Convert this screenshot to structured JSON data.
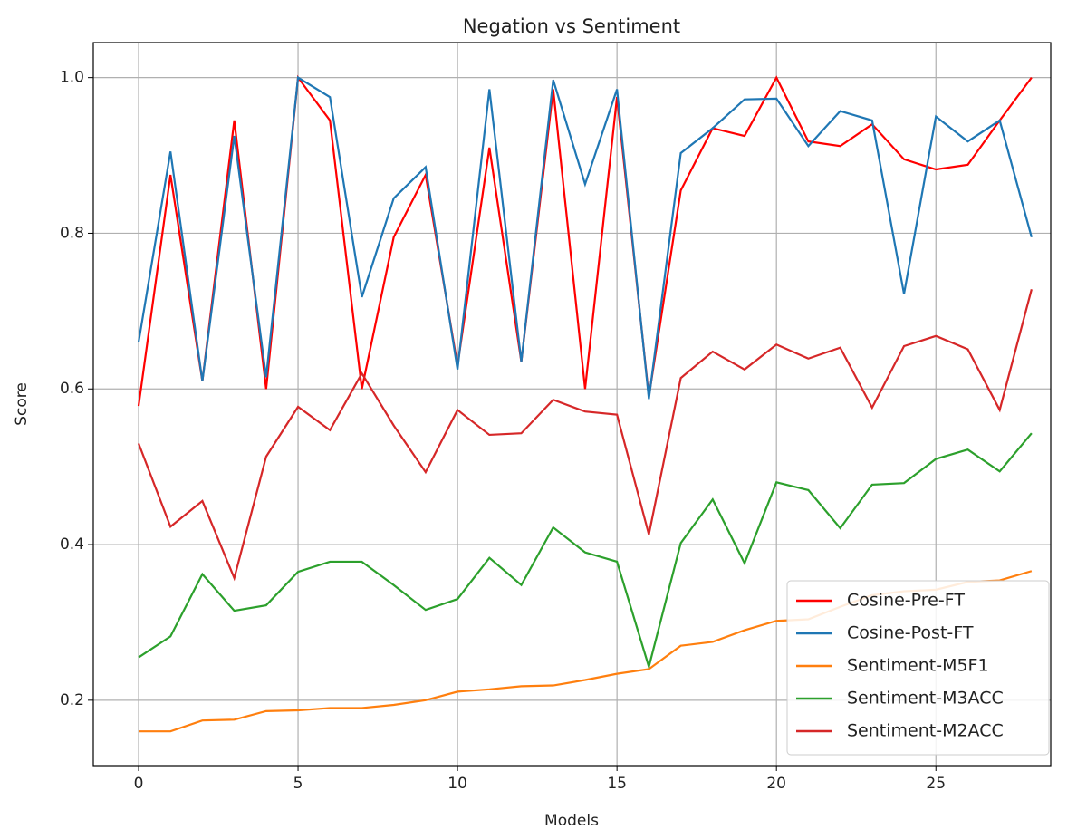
{
  "chart_data": {
    "type": "line",
    "title": "Negation vs Sentiment",
    "x_label": "Models",
    "y_label": "Score",
    "x": [
      0,
      1,
      2,
      3,
      4,
      5,
      6,
      7,
      8,
      9,
      10,
      11,
      12,
      13,
      14,
      15,
      16,
      17,
      18,
      19,
      20,
      21,
      22,
      23,
      24,
      25,
      26,
      27,
      28
    ],
    "series": [
      {
        "name": "Cosine-Pre-FT",
        "color": "#ff0000",
        "values": [
          0.578,
          0.875,
          0.61,
          0.945,
          0.6,
          1.0,
          0.945,
          0.6,
          0.795,
          0.875,
          0.63,
          0.91,
          0.635,
          0.985,
          0.6,
          0.975,
          0.59,
          0.855,
          0.935,
          0.925,
          1.0,
          0.918,
          0.912,
          0.94,
          0.895,
          0.882,
          0.888,
          0.945,
          1.0
        ]
      },
      {
        "name": "Cosine-Post-FT",
        "color": "#1f77b4",
        "values": [
          0.66,
          0.905,
          0.61,
          0.925,
          0.615,
          1.0,
          0.975,
          0.718,
          0.845,
          0.885,
          0.625,
          0.985,
          0.635,
          0.997,
          0.863,
          0.985,
          0.587,
          0.903,
          0.935,
          0.972,
          0.973,
          0.912,
          0.957,
          0.945,
          0.722,
          0.95,
          0.918,
          0.945,
          0.795
        ]
      },
      {
        "name": "Sentiment-M5F1",
        "color": "#ff7f0e",
        "values": [
          0.16,
          0.16,
          0.174,
          0.175,
          0.186,
          0.187,
          0.19,
          0.19,
          0.194,
          0.2,
          0.211,
          0.214,
          0.218,
          0.219,
          0.226,
          0.234,
          0.24,
          0.27,
          0.275,
          0.29,
          0.302,
          0.304,
          0.32,
          0.335,
          0.34,
          0.342,
          0.352,
          0.354,
          0.366
        ]
      },
      {
        "name": "Sentiment-M3ACC",
        "color": "#2ca02c",
        "values": [
          0.255,
          0.282,
          0.362,
          0.315,
          0.322,
          0.365,
          0.378,
          0.378,
          0.348,
          0.316,
          0.33,
          0.383,
          0.348,
          0.422,
          0.39,
          0.378,
          0.243,
          0.402,
          0.458,
          0.376,
          0.48,
          0.47,
          0.421,
          0.477,
          0.479,
          0.51,
          0.522,
          0.494,
          0.543
        ]
      },
      {
        "name": "Sentiment-M2ACC",
        "color": "#d62728",
        "values": [
          0.53,
          0.423,
          0.456,
          0.357,
          0.513,
          0.577,
          0.547,
          0.62,
          0.553,
          0.493,
          0.573,
          0.541,
          0.543,
          0.586,
          0.571,
          0.567,
          0.413,
          0.614,
          0.648,
          0.625,
          0.657,
          0.639,
          0.653,
          0.576,
          0.655,
          0.668,
          0.651,
          0.573,
          0.728
        ]
      }
    ],
    "xlim": [
      -1.42,
      28.6
    ],
    "xticks": [
      0,
      5,
      10,
      15,
      20,
      25
    ],
    "ylim": [
      0.116,
      1.045
    ],
    "yticks": [
      0.2,
      0.4,
      0.6,
      0.8,
      {
        "value": 1,
        "label": "1.0"
      }
    ],
    "grid": true,
    "legend": "lower right"
  }
}
